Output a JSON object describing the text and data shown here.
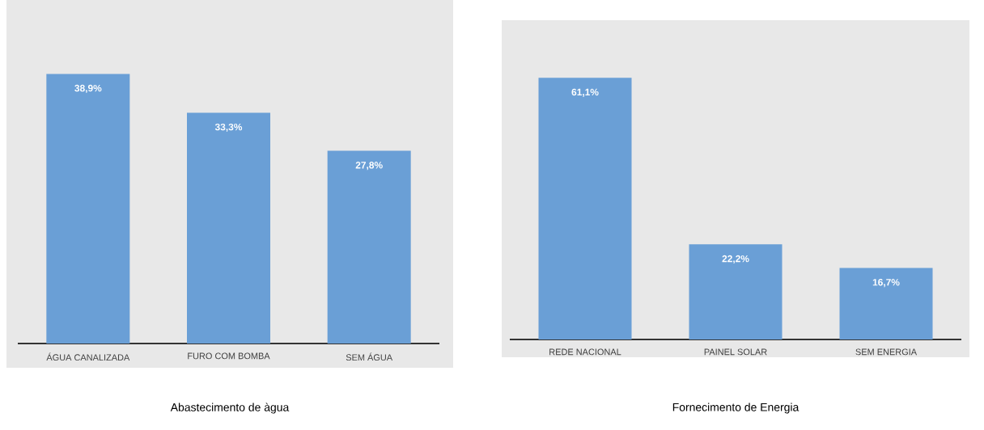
{
  "chart_data": [
    {
      "type": "bar",
      "title": "Abastecimento de àgua",
      "categories": [
        "ÁGUA CANALIZADA",
        "FURO COM BOMBA",
        "SEM ÁGUA"
      ],
      "values": [
        38.9,
        33.3,
        27.8
      ],
      "value_labels": [
        "38,9%",
        "33,3%",
        "27,8%"
      ],
      "color": "#6a9fd6",
      "tick_labels": "x"
    },
    {
      "type": "bar",
      "title": "Fornecimento de Energia",
      "categories": [
        "REDE NACIONAL",
        "PAINEL SOLAR",
        "SEM ENERGIA"
      ],
      "values": [
        61.1,
        22.2,
        16.7
      ],
      "value_labels": [
        "61,1%",
        "22,2%",
        "16,7%"
      ],
      "color": "#6a9fd6",
      "tick_labels": "x"
    }
  ]
}
